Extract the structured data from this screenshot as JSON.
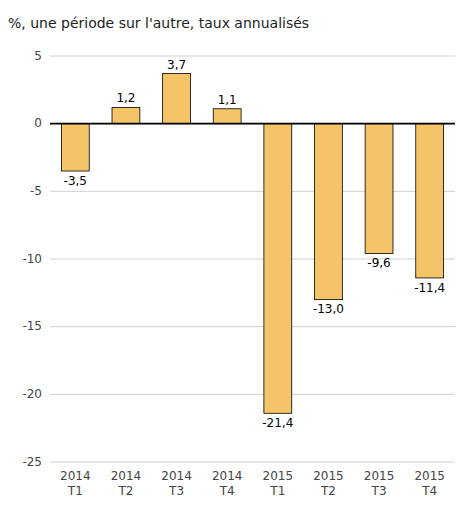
{
  "chart_data": {
    "type": "bar",
    "title": "%, une période sur l'autre, taux annualisés",
    "categories": [
      "2014\nT1",
      "2014\nT2",
      "2014\nT3",
      "2014\nT4",
      "2015\nT1",
      "2015\nT2",
      "2015\nT3",
      "2015\nT4"
    ],
    "values": [
      -3.5,
      1.2,
      3.7,
      1.1,
      -21.4,
      -13.0,
      -9.6,
      -11.4
    ],
    "value_labels": [
      "-3,5",
      "1,2",
      "3,7",
      "1,1",
      "-21,4",
      "-13,0",
      "-9,6",
      "-11,4"
    ],
    "color": "#F5C469",
    "ylim": [
      -25,
      5
    ],
    "yticks": [
      5,
      0,
      -5,
      -10,
      -15,
      -20,
      -25
    ],
    "grid": true,
    "data_labels": true
  }
}
